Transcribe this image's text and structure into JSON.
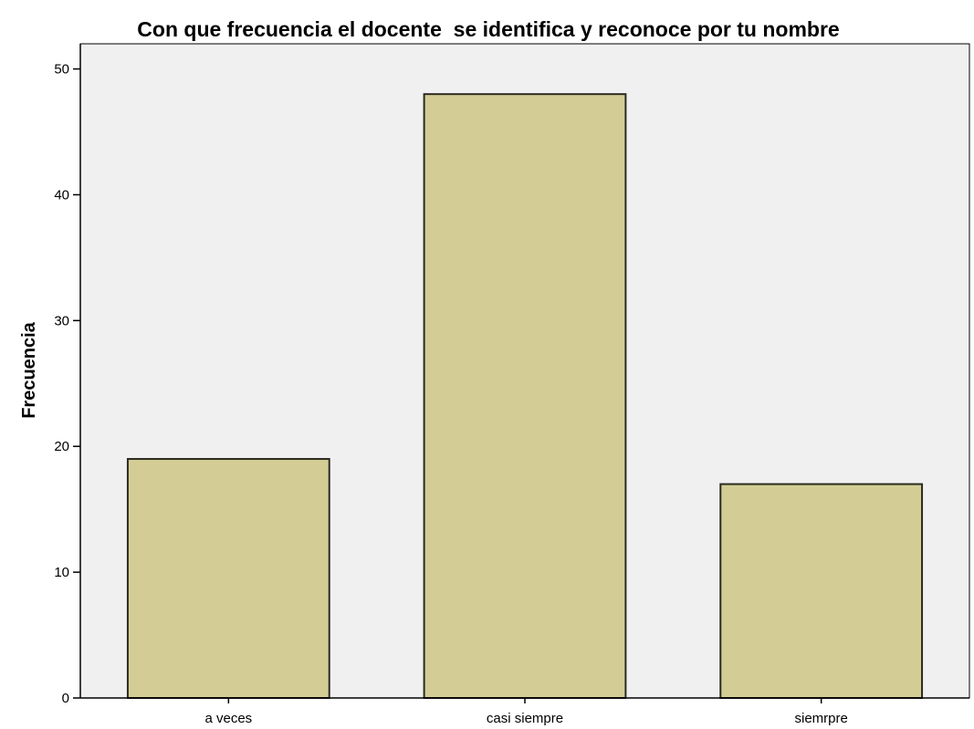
{
  "chart_data": {
    "type": "bar",
    "title": "Con que frecuencia el docente  se identifica y reconoce por tu nombre",
    "xlabel": "",
    "ylabel": "Frecuencia",
    "categories": [
      "a veces",
      "casi siempre",
      "siemrpre"
    ],
    "values": [
      19,
      48,
      17
    ],
    "ylim": [
      0,
      52
    ],
    "yticks": [
      "0",
      "10",
      "20",
      "30",
      "40",
      "50"
    ],
    "grid": false,
    "legend": "none",
    "colors": {
      "bar_fill": "#d3cd95",
      "bar_stroke": "#2b2b22",
      "plot_background": "#f0f0f0",
      "axis": "#000000"
    }
  }
}
